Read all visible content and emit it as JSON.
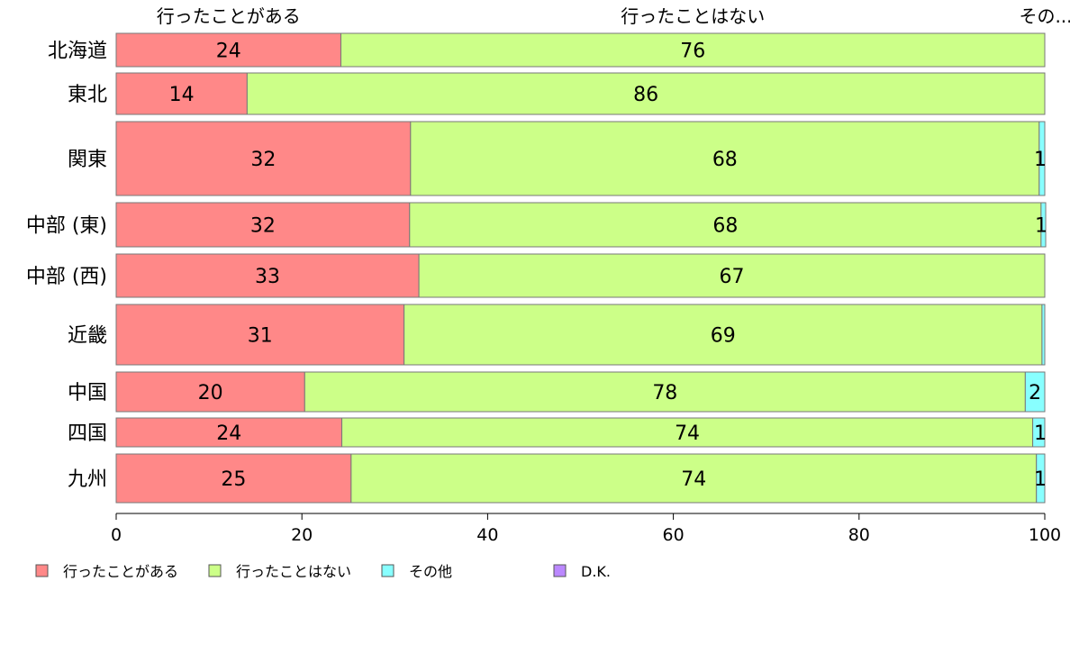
{
  "chart_data": {
    "type": "bar",
    "orientation": "horizontal-stacked-percent",
    "categories": [
      "北海道",
      "東北",
      "関東",
      "中部 (東)",
      "中部 (西)",
      "近畿",
      "中国",
      "四国",
      "九州"
    ],
    "series": [
      {
        "name": "行ったことがある",
        "color": "#FF8888",
        "values": [
          24.2,
          14.1,
          31.7,
          31.6,
          32.6,
          31.0,
          20.3,
          24.3,
          25.3
        ],
        "labels": [
          "24",
          "14",
          "32",
          "32",
          "33",
          "31",
          "20",
          "24",
          "25"
        ]
      },
      {
        "name": "行ったことはない",
        "color": "#CCFF88",
        "values": [
          75.8,
          85.9,
          67.7,
          68.0,
          67.4,
          68.7,
          77.6,
          74.4,
          73.8
        ],
        "labels": [
          "76",
          "86",
          "68",
          "68",
          "67",
          "69",
          "78",
          "74",
          "74"
        ]
      },
      {
        "name": "その他",
        "color": "#88FFFF",
        "values": [
          0,
          0,
          0.6,
          0.5,
          0,
          0.3,
          2.1,
          1.3,
          0.9
        ],
        "labels": [
          "",
          "",
          "1",
          "1",
          "",
          "",
          "2",
          "1",
          "1"
        ]
      },
      {
        "name": "D.K.",
        "color": "#BB88FF",
        "values": [
          0,
          0,
          0,
          0,
          0,
          0,
          0,
          0,
          0
        ],
        "labels": [
          "",
          "",
          "",
          "",
          "",
          "",
          "",
          "",
          ""
        ]
      }
    ],
    "top_labels": [
      "行ったことがある",
      "行ったことはない",
      "その..."
    ],
    "xlim": [
      0,
      100
    ],
    "xticks": [
      "0",
      "20",
      "40",
      "60",
      "80",
      "100"
    ],
    "legend_position": "bottom-left",
    "grid": false
  }
}
